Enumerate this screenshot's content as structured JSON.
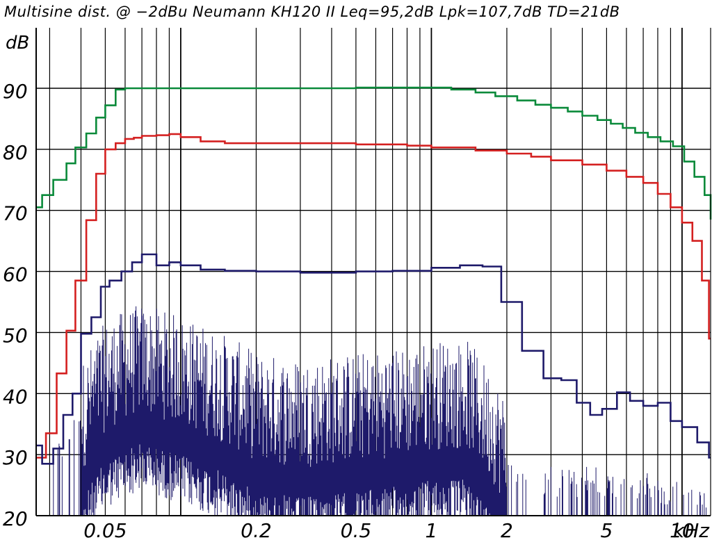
{
  "chart_data": {
    "type": "line",
    "title": "Multisine dist. @ −2dBu Neumann KH120 II Leq=95,2dB  Lpk=107,7dB  TD=21dB",
    "ylabel": "dB",
    "xlabel": "kHz",
    "x_scale": "log",
    "xlim": [
      0.0265,
      13.0
    ],
    "ylim": [
      20,
      95
    ],
    "grid": true,
    "y_ticks": [
      20,
      30,
      40,
      50,
      60,
      70,
      80,
      90
    ],
    "x_tick_labels": [
      {
        "label": "0.05",
        "value": 0.05
      },
      {
        "label": "0.2",
        "value": 0.2
      },
      {
        "label": "0.5",
        "value": 0.5
      },
      {
        "label": "1",
        "value": 1
      },
      {
        "label": "2",
        "value": 2
      },
      {
        "label": "5",
        "value": 5
      },
      {
        "label": "10",
        "value": 10
      }
    ],
    "x_gridlines": [
      0.03,
      0.04,
      0.05,
      0.06,
      0.07,
      0.08,
      0.09,
      0.1,
      0.2,
      0.3,
      0.4,
      0.5,
      0.6,
      0.7,
      0.8,
      0.9,
      1,
      2,
      3,
      4,
      5,
      6,
      7,
      8,
      9,
      10
    ],
    "series": [
      {
        "color": "#0a8a3a",
        "step": true,
        "x": [
          0.0265,
          0.028,
          0.031,
          0.035,
          0.038,
          0.042,
          0.046,
          0.05,
          0.055,
          0.06,
          0.07,
          0.1,
          0.2,
          0.5,
          0.8,
          1,
          1.2,
          1.5,
          1.8,
          2.2,
          2.6,
          3,
          3.5,
          4,
          4.6,
          5.2,
          5.8,
          6.5,
          7.3,
          8.2,
          9.2,
          10.2,
          11.2,
          12.3,
          13
        ],
        "y": [
          70.5,
          72.5,
          75,
          77.7,
          80.3,
          82.6,
          85.2,
          87.2,
          89.8,
          90,
          90,
          90,
          90,
          90.1,
          90.1,
          90.1,
          89.8,
          89.3,
          88.7,
          88,
          87.3,
          86.8,
          86.2,
          85.5,
          84.8,
          84.2,
          83.5,
          82.7,
          82,
          81.3,
          80.5,
          78,
          75.5,
          72.5,
          68.5
        ]
      },
      {
        "color": "#d42020",
        "step": true,
        "x": [
          0.0265,
          0.029,
          0.032,
          0.035,
          0.038,
          0.042,
          0.046,
          0.05,
          0.055,
          0.06,
          0.065,
          0.07,
          0.08,
          0.09,
          0.1,
          0.12,
          0.15,
          0.2,
          0.3,
          0.5,
          0.8,
          1,
          1.5,
          2,
          2.5,
          3,
          4,
          5,
          6,
          7,
          8,
          9,
          10,
          11,
          12,
          12.8
        ],
        "y": [
          29.5,
          33.5,
          43.3,
          50.3,
          58.5,
          68.4,
          76,
          80,
          81,
          81.7,
          81.9,
          82.2,
          82.3,
          82.5,
          82,
          81.3,
          81,
          81,
          81,
          80.8,
          80.6,
          80.3,
          79.8,
          79.3,
          78.8,
          78.2,
          77.5,
          76.5,
          75.5,
          74.5,
          72.7,
          70.5,
          68,
          65,
          58.5,
          49
        ]
      },
      {
        "color": "#1e1a6a",
        "step": true,
        "x": [
          0.0265,
          0.028,
          0.031,
          0.034,
          0.037,
          0.04,
          0.044,
          0.048,
          0.052,
          0.058,
          0.064,
          0.07,
          0.08,
          0.09,
          0.1,
          0.12,
          0.15,
          0.2,
          0.3,
          0.5,
          0.7,
          1,
          1.3,
          1.6,
          1.9,
          2.3,
          2.8,
          3.3,
          3.8,
          4.3,
          4.8,
          5.5,
          6.2,
          7,
          8,
          9,
          10,
          11.5,
          12.8
        ],
        "y": [
          31.5,
          28.5,
          31,
          36.5,
          40,
          49.8,
          52.5,
          57.5,
          58.5,
          60,
          61.5,
          62.8,
          61,
          61.5,
          61,
          60.3,
          60.1,
          60,
          59.8,
          60,
          60.1,
          60.6,
          61,
          60.8,
          55,
          47,
          42.5,
          42.2,
          38.5,
          36.5,
          37.5,
          40.2,
          38.8,
          38,
          38.5,
          35.5,
          34.5,
          32,
          29.5
        ]
      },
      {
        "color": "#1e1a6a",
        "type": "noise",
        "description_levels": [
          {
            "x": 0.03,
            "y": 26
          },
          {
            "x": 0.035,
            "y": 28
          },
          {
            "x": 0.04,
            "y": 34
          },
          {
            "x": 0.045,
            "y": 38
          },
          {
            "x": 0.05,
            "y": 41
          },
          {
            "x": 0.06,
            "y": 43
          },
          {
            "x": 0.07,
            "y": 44
          },
          {
            "x": 0.1,
            "y": 42
          },
          {
            "x": 0.15,
            "y": 39
          },
          {
            "x": 0.2,
            "y": 36
          },
          {
            "x": 0.3,
            "y": 35
          },
          {
            "x": 0.5,
            "y": 36
          },
          {
            "x": 0.8,
            "y": 37
          },
          {
            "x": 1,
            "y": 38
          },
          {
            "x": 1.4,
            "y": 38
          },
          {
            "x": 1.8,
            "y": 32
          },
          {
            "x": 2.2,
            "y": 25
          },
          {
            "x": 3,
            "y": 23
          },
          {
            "x": 5,
            "y": 23
          },
          {
            "x": 8,
            "y": 22
          },
          {
            "x": 12,
            "y": 21
          }
        ]
      }
    ]
  }
}
